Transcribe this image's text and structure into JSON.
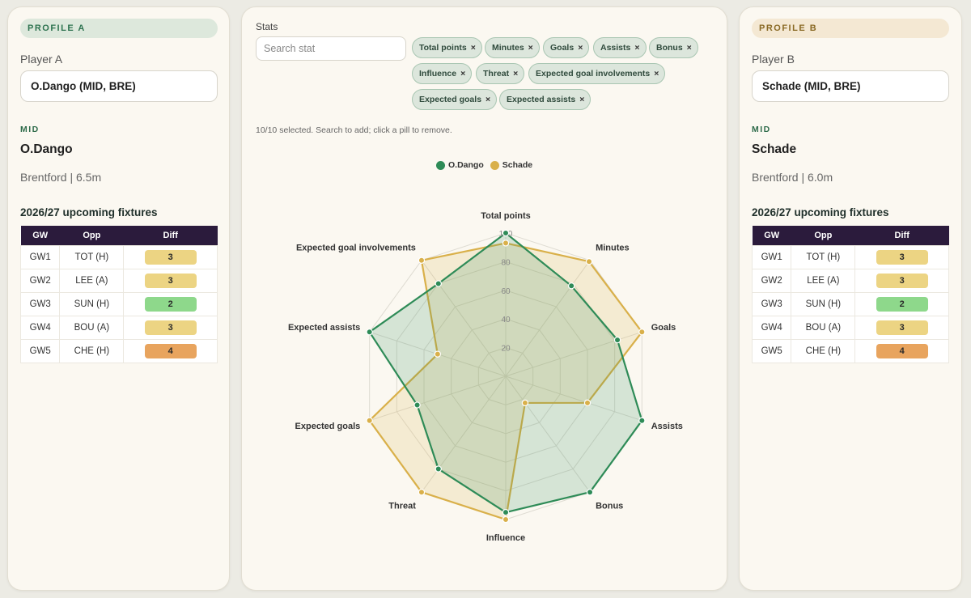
{
  "profile_a": {
    "badge": "PROFILE A",
    "label": "Player A",
    "selected": "O.Dango (MID, BRE)",
    "position": "MID",
    "name": "O.Dango",
    "club_price": "Brentford | 6.5m",
    "fixtures_title": "2026/27 upcoming fixtures",
    "headers": [
      "GW",
      "Opp",
      "Diff"
    ],
    "fixtures": [
      {
        "gw": "GW1",
        "opp": "TOT (H)",
        "diff": "3"
      },
      {
        "gw": "GW2",
        "opp": "LEE (A)",
        "diff": "3"
      },
      {
        "gw": "GW3",
        "opp": "SUN (H)",
        "diff": "2"
      },
      {
        "gw": "GW4",
        "opp": "BOU (A)",
        "diff": "3"
      },
      {
        "gw": "GW5",
        "opp": "CHE (H)",
        "diff": "4"
      }
    ]
  },
  "profile_b": {
    "badge": "PROFILE B",
    "label": "Player B",
    "selected": "Schade (MID, BRE)",
    "position": "MID",
    "name": "Schade",
    "club_price": "Brentford | 6.0m",
    "fixtures_title": "2026/27 upcoming fixtures",
    "headers": [
      "GW",
      "Opp",
      "Diff"
    ],
    "fixtures": [
      {
        "gw": "GW1",
        "opp": "TOT (H)",
        "diff": "3"
      },
      {
        "gw": "GW2",
        "opp": "LEE (A)",
        "diff": "3"
      },
      {
        "gw": "GW3",
        "opp": "SUN (H)",
        "diff": "2"
      },
      {
        "gw": "GW4",
        "opp": "BOU (A)",
        "diff": "3"
      },
      {
        "gw": "GW5",
        "opp": "CHE (H)",
        "diff": "4"
      }
    ]
  },
  "stats": {
    "label": "Stats",
    "search_placeholder": "Search stat",
    "pills": [
      "Total points",
      "Minutes",
      "Goals",
      "Assists",
      "Bonus",
      "Influence",
      "Threat",
      "Expected goal involvements",
      "Expected goals",
      "Expected assists"
    ],
    "pill_remove_glyph": "×",
    "hint": "10/10 selected. Search to add; click a pill to remove."
  },
  "colors": {
    "player_a": "#2e8b57",
    "player_b": "#d9b04a",
    "diff_2": "#8ed88b",
    "diff_3": "#ecd483",
    "diff_4": "#e8a45e"
  },
  "chart_data": {
    "type": "radar",
    "categories": [
      "Total points",
      "Minutes",
      "Goals",
      "Assists",
      "Bonus",
      "Influence",
      "Threat",
      "Expected goals",
      "Expected assists",
      "Expected goal involvements"
    ],
    "rlim": [
      0,
      100
    ],
    "ticks": [
      20,
      40,
      60,
      80,
      100
    ],
    "legend_position": "top",
    "series": [
      {
        "name": "O.Dango",
        "values": [
          100,
          78,
          82,
          100,
          100,
          95,
          80,
          65,
          100,
          80
        ]
      },
      {
        "name": "Schade",
        "values": [
          93,
          99,
          100,
          60,
          23,
          100,
          100,
          100,
          50,
          100
        ]
      }
    ]
  }
}
